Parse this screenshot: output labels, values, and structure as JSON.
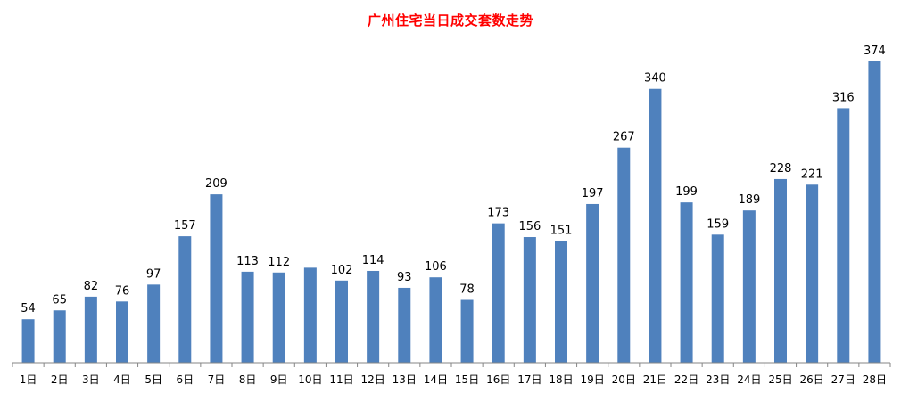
{
  "colors": {
    "bar": "#4f81bd",
    "title": "#ff0000",
    "axis": "#868686",
    "label": "#000000"
  },
  "chart_data": {
    "type": "bar",
    "title": "广州住宅当日成交套数走势",
    "xlabel": "",
    "ylabel": "",
    "grid": false,
    "legend": "none",
    "ylim": [
      0,
      374
    ],
    "categories": [
      "1日",
      "2日",
      "3日",
      "4日",
      "5日",
      "6日",
      "7日",
      "8日",
      "9日",
      "10日",
      "11日",
      "12日",
      "13日",
      "14日",
      "15日",
      "16日",
      "17日",
      "18日",
      "19日",
      "20日",
      "21日",
      "22日",
      "23日",
      "24日",
      "25日",
      "26日",
      "27日",
      "28日"
    ],
    "values": [
      54,
      65,
      82,
      76,
      97,
      157,
      209,
      113,
      112,
      null,
      102,
      114,
      93,
      106,
      78,
      173,
      156,
      151,
      197,
      267,
      340,
      199,
      159,
      189,
      228,
      221,
      316,
      374
    ],
    "bar_values_estimated": [
      54,
      65,
      82,
      76,
      97,
      157,
      209,
      113,
      112,
      118,
      102,
      114,
      93,
      106,
      78,
      173,
      156,
      151,
      197,
      267,
      340,
      199,
      159,
      189,
      228,
      221,
      316,
      374
    ],
    "data_labels": [
      "54",
      "65",
      "82",
      "76",
      "97",
      "157",
      "209",
      "113",
      "112",
      "",
      "102",
      "114",
      "93",
      "106",
      "78",
      "173",
      "156",
      "151",
      "197",
      "267",
      "340",
      "199",
      "159",
      "189",
      "228",
      "221",
      "316",
      "374"
    ]
  }
}
